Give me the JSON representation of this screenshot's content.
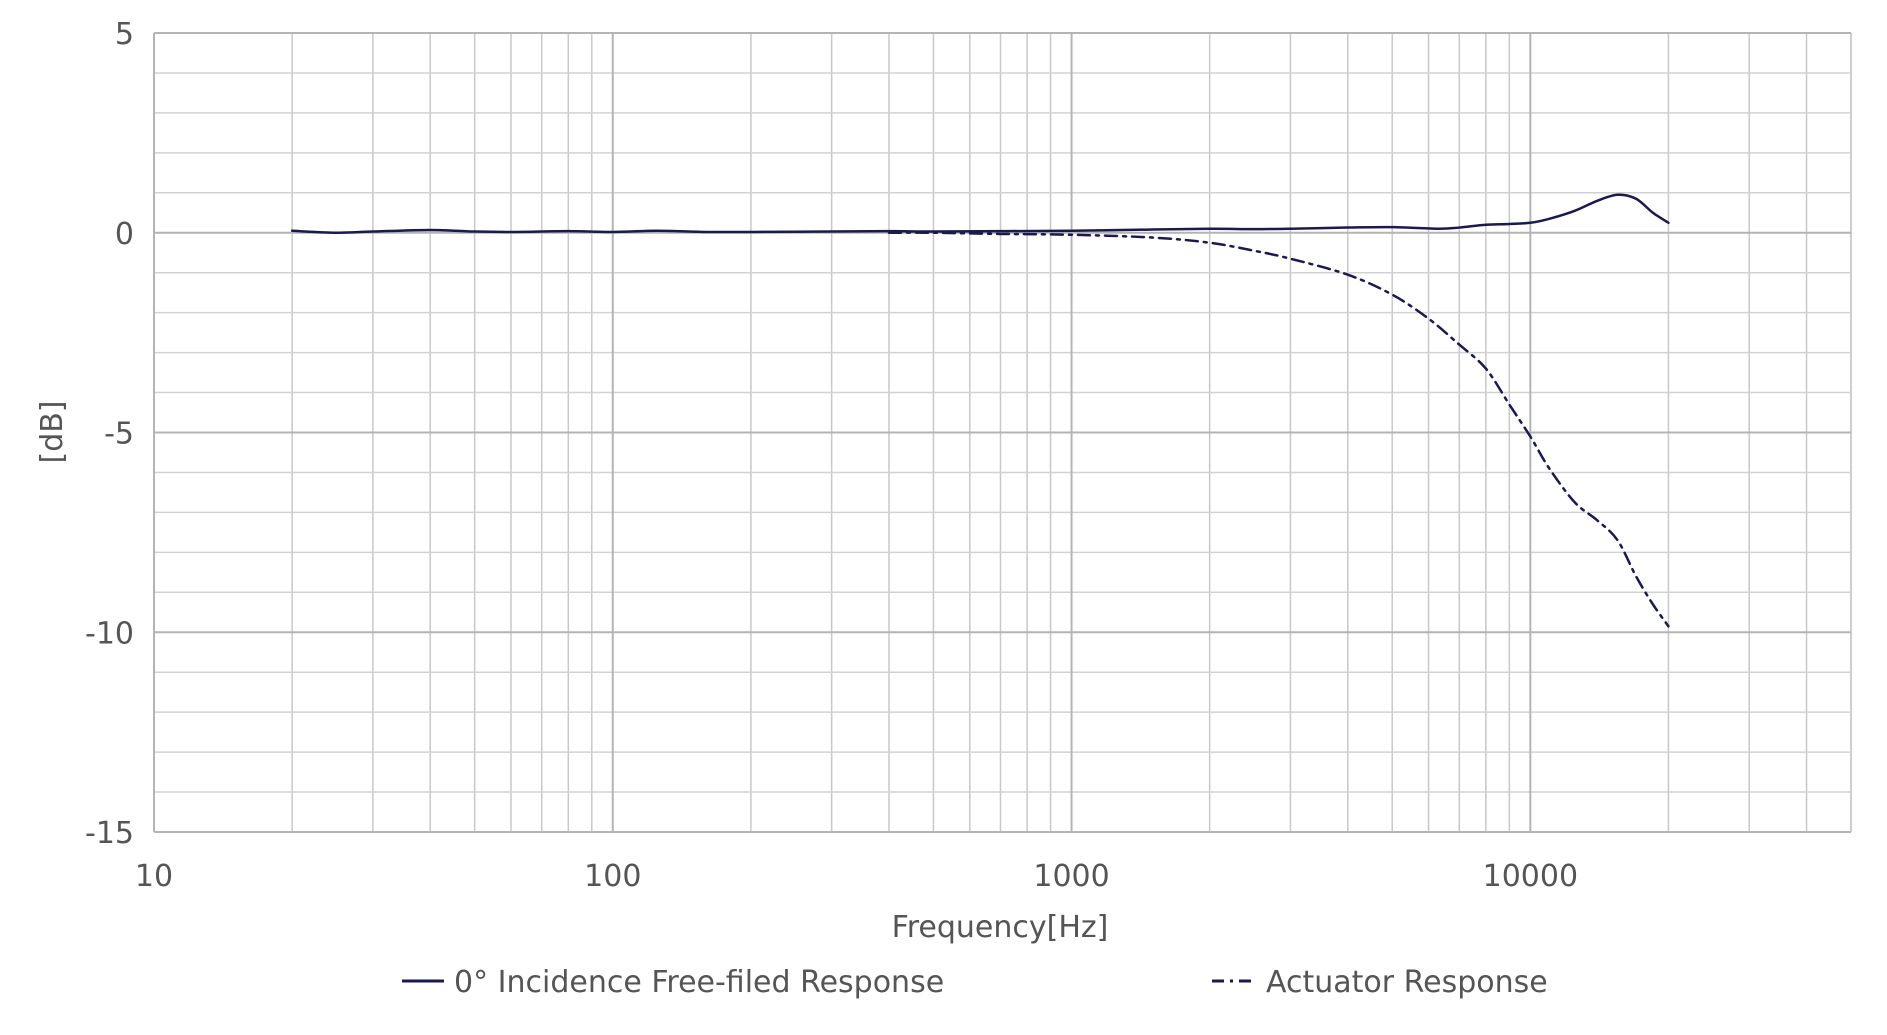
{
  "chart_data": {
    "type": "line",
    "title": "",
    "xlabel": "Frequency[Hz]",
    "ylabel": "[dB]",
    "x_scale": "log",
    "xlim": [
      10,
      50000
    ],
    "ylim": [
      -15,
      5
    ],
    "x_ticks": [
      {
        "value": 10,
        "label": "10"
      },
      {
        "value": 100,
        "label": "100"
      },
      {
        "value": 1000,
        "label": "1000"
      },
      {
        "value": 10000,
        "label": "10000"
      }
    ],
    "y_ticks": [
      {
        "value": 5,
        "label": "5"
      },
      {
        "value": 0,
        "label": "0"
      },
      {
        "value": -5,
        "label": "-5"
      },
      {
        "value": -10,
        "label": "-10"
      },
      {
        "value": -15,
        "label": "-15"
      }
    ],
    "grid": true,
    "legend_position": "bottom",
    "series": [
      {
        "name": "0° Incidence Free-filed Response",
        "color": "#1b1a4d",
        "style": "solid",
        "points": [
          [
            20,
            0.05
          ],
          [
            25,
            0.0
          ],
          [
            30,
            0.03
          ],
          [
            40,
            0.07
          ],
          [
            50,
            0.03
          ],
          [
            60,
            0.02
          ],
          [
            80,
            0.04
          ],
          [
            100,
            0.02
          ],
          [
            125,
            0.05
          ],
          [
            160,
            0.02
          ],
          [
            200,
            0.02
          ],
          [
            300,
            0.03
          ],
          [
            400,
            0.04
          ],
          [
            500,
            0.03
          ],
          [
            700,
            0.04
          ],
          [
            1000,
            0.05
          ],
          [
            1500,
            0.08
          ],
          [
            2000,
            0.1
          ],
          [
            2500,
            0.09
          ],
          [
            3000,
            0.1
          ],
          [
            4000,
            0.13
          ],
          [
            5000,
            0.14
          ],
          [
            6300,
            0.1
          ],
          [
            7000,
            0.13
          ],
          [
            8000,
            0.2
          ],
          [
            9000,
            0.22
          ],
          [
            10000,
            0.25
          ],
          [
            11000,
            0.35
          ],
          [
            12500,
            0.55
          ],
          [
            14000,
            0.8
          ],
          [
            15500,
            0.95
          ],
          [
            17000,
            0.85
          ],
          [
            18500,
            0.5
          ],
          [
            20000,
            0.25
          ]
        ]
      },
      {
        "name": "Actuator Response",
        "color": "#1b1a4d",
        "style": "dashdot",
        "points": [
          [
            400,
            0.0
          ],
          [
            500,
            0.0
          ],
          [
            700,
            -0.03
          ],
          [
            1000,
            -0.05
          ],
          [
            1500,
            -0.12
          ],
          [
            2000,
            -0.25
          ],
          [
            2500,
            -0.45
          ],
          [
            3000,
            -0.65
          ],
          [
            4000,
            -1.05
          ],
          [
            5000,
            -1.55
          ],
          [
            6000,
            -2.15
          ],
          [
            7000,
            -2.8
          ],
          [
            8000,
            -3.4
          ],
          [
            9000,
            -4.3
          ],
          [
            10000,
            -5.1
          ],
          [
            11000,
            -5.9
          ],
          [
            12500,
            -6.75
          ],
          [
            14000,
            -7.2
          ],
          [
            15500,
            -7.7
          ],
          [
            17000,
            -8.6
          ],
          [
            18500,
            -9.3
          ],
          [
            20000,
            -9.85
          ]
        ]
      }
    ]
  }
}
